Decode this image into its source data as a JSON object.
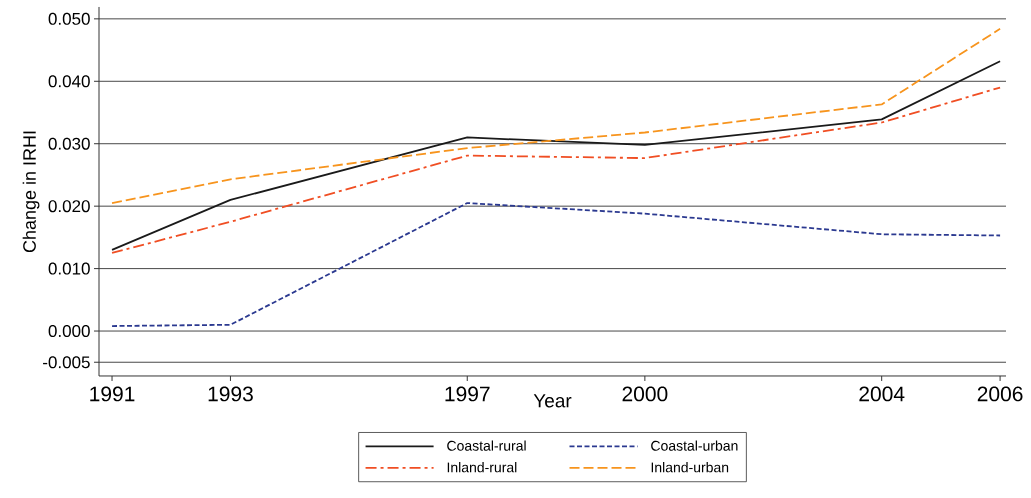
{
  "chart_data": {
    "type": "line",
    "xlabel": "Year",
    "ylabel": "Change in IRHI",
    "x": [
      1991,
      1993,
      1997,
      2000,
      2004,
      2006
    ],
    "series": [
      {
        "name": "Coastal-rural",
        "color": "#1a1a1a",
        "line_style": "solid",
        "values": [
          0.013,
          0.021,
          0.031,
          0.0298,
          0.0339,
          0.0432
        ]
      },
      {
        "name": "Coastal-urban",
        "color": "#2b3990",
        "line_style": "dotted",
        "values": [
          0.0008,
          0.001,
          0.0205,
          0.0188,
          0.0155,
          0.0153
        ]
      },
      {
        "name": "Inland-rural",
        "color": "#f04e23",
        "line_style": "dashdot",
        "values": [
          0.0125,
          0.0175,
          0.0281,
          0.0277,
          0.0334,
          0.039
        ]
      },
      {
        "name": "Inland-urban",
        "color": "#f7941d",
        "line_style": "dashed",
        "values": [
          0.0205,
          0.0243,
          0.0293,
          0.0318,
          0.0363,
          0.0484
        ]
      }
    ],
    "xlim": [
      1990.78,
      2006.1
    ],
    "ylim": [
      -0.0072,
      0.0519
    ],
    "xticks": [
      1991,
      1993,
      1997,
      2000,
      2004,
      2006
    ],
    "yticks": [
      {
        "value": -0.005,
        "label": "-0.005"
      },
      {
        "value": 0,
        "label": "0.000"
      },
      {
        "value": 0.01,
        "label": "0.010"
      },
      {
        "value": 0.02,
        "label": "0.020"
      },
      {
        "value": 0.03,
        "label": "0.030"
      },
      {
        "value": 0.04,
        "label": "0.040"
      },
      {
        "value": 0.05,
        "label": "0.050"
      }
    ],
    "grid": "y",
    "legend": "bottom",
    "marker": "none"
  }
}
